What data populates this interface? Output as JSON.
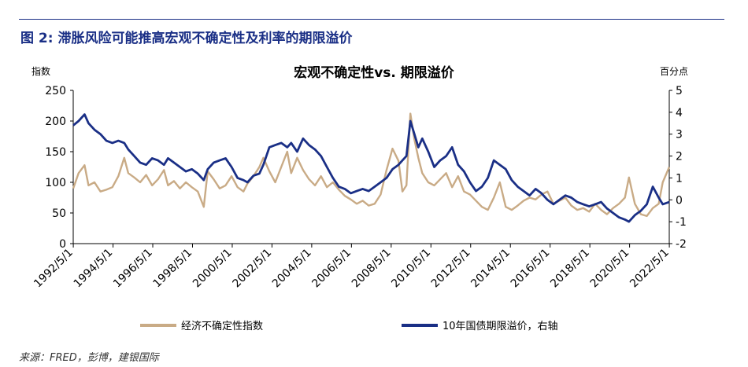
{
  "figure_title": "图 2: 滞胀风险可能推高宏观不确定性及利率的期限溢价",
  "source": "来源：FRED，彭博，建银国际",
  "chart_data": {
    "type": "line",
    "title": "宏观不确定性vs. 期限溢价",
    "ylabel_left": "指数",
    "ylabel_right": "百分点",
    "ylim_left": [
      0,
      250
    ],
    "ylim_right": [
      -2,
      5
    ],
    "yticks_left": [
      "0",
      "50",
      "100",
      "150",
      "200",
      "250"
    ],
    "yticks_right": [
      "-2",
      "-1",
      "0",
      "1",
      "2",
      "3",
      "4",
      "5"
    ],
    "xticks": [
      "1992/5/1",
      "1994/5/1",
      "1996/5/1",
      "1998/5/1",
      "2000/5/1",
      "2002/5/1",
      "2004/5/1",
      "2006/5/1",
      "2008/5/1",
      "2010/5/1",
      "2012/5/1",
      "2014/5/1",
      "2016/5/1",
      "2018/5/1",
      "2020/5/1",
      "2022/5/1"
    ],
    "xlim": [
      1992.33,
      2022.33
    ],
    "grid": false,
    "legend_position": "bottom",
    "series": [
      {
        "name": "经济不确定性指数",
        "axis": "left",
        "color": "#c9ab86",
        "x": [
          1992.33,
          1992.6,
          1992.9,
          1993.1,
          1993.4,
          1993.7,
          1994.0,
          1994.3,
          1994.6,
          1994.9,
          1995.1,
          1995.4,
          1995.7,
          1996.0,
          1996.3,
          1996.6,
          1996.9,
          1997.1,
          1997.4,
          1997.7,
          1998.0,
          1998.3,
          1998.6,
          1998.9,
          1999.1,
          1999.4,
          1999.7,
          2000.0,
          2000.3,
          2000.6,
          2000.9,
          2001.1,
          2001.4,
          2001.7,
          2001.9,
          2002.2,
          2002.5,
          2002.8,
          2003.1,
          2003.3,
          2003.6,
          2003.9,
          2004.2,
          2004.5,
          2004.8,
          2005.1,
          2005.4,
          2005.7,
          2006.0,
          2006.3,
          2006.6,
          2006.9,
          2007.2,
          2007.5,
          2007.8,
          2008.1,
          2008.4,
          2008.7,
          2008.9,
          2009.1,
          2009.3,
          2009.5,
          2009.7,
          2009.9,
          2010.2,
          2010.5,
          2010.8,
          2011.1,
          2011.4,
          2011.7,
          2012.0,
          2012.3,
          2012.6,
          2012.9,
          2013.2,
          2013.5,
          2013.8,
          2014.1,
          2014.4,
          2014.7,
          2015.0,
          2015.3,
          2015.6,
          2015.9,
          2016.2,
          2016.5,
          2016.8,
          2017.1,
          2017.4,
          2017.7,
          2018.0,
          2018.3,
          2018.6,
          2018.9,
          2019.2,
          2019.5,
          2019.8,
          2020.1,
          2020.3,
          2020.6,
          2020.9,
          2021.2,
          2021.5,
          2021.8,
          2022.0,
          2022.33
        ],
        "y": [
          90,
          115,
          128,
          95,
          100,
          85,
          88,
          92,
          110,
          140,
          115,
          108,
          100,
          112,
          95,
          105,
          120,
          95,
          102,
          90,
          100,
          92,
          85,
          60,
          118,
          105,
          90,
          95,
          110,
          92,
          85,
          98,
          110,
          125,
          140,
          118,
          100,
          125,
          150,
          115,
          140,
          120,
          105,
          95,
          110,
          92,
          100,
          88,
          78,
          72,
          65,
          70,
          62,
          65,
          80,
          120,
          155,
          135,
          85,
          95,
          212,
          170,
          140,
          115,
          100,
          95,
          105,
          115,
          92,
          110,
          85,
          80,
          70,
          60,
          55,
          75,
          100,
          60,
          55,
          62,
          70,
          75,
          72,
          80,
          85,
          65,
          70,
          75,
          62,
          55,
          58,
          52,
          65,
          55,
          48,
          58,
          65,
          75,
          108,
          65,
          48,
          45,
          58,
          65,
          100,
          125
        ]
      },
      {
        "name": "10年国债期限溢价，右轴",
        "axis": "right",
        "color": "#1a2f86",
        "x": [
          1992.33,
          1992.6,
          1992.9,
          1993.1,
          1993.4,
          1993.7,
          1994.0,
          1994.3,
          1994.6,
          1994.9,
          1995.1,
          1995.4,
          1995.7,
          1996.0,
          1996.3,
          1996.6,
          1996.9,
          1997.1,
          1997.4,
          1997.7,
          1998.0,
          1998.3,
          1998.6,
          1998.9,
          1999.1,
          1999.4,
          1999.7,
          2000.0,
          2000.3,
          2000.6,
          2000.9,
          2001.1,
          2001.4,
          2001.7,
          2001.9,
          2002.2,
          2002.5,
          2002.8,
          2003.1,
          2003.3,
          2003.6,
          2003.9,
          2004.2,
          2004.5,
          2004.8,
          2005.1,
          2005.4,
          2005.7,
          2006.0,
          2006.3,
          2006.6,
          2006.9,
          2007.2,
          2007.5,
          2007.8,
          2008.1,
          2008.4,
          2008.7,
          2008.9,
          2009.1,
          2009.3,
          2009.5,
          2009.7,
          2009.9,
          2010.2,
          2010.5,
          2010.8,
          2011.1,
          2011.4,
          2011.7,
          2012.0,
          2012.3,
          2012.6,
          2012.9,
          2013.2,
          2013.5,
          2013.8,
          2014.1,
          2014.4,
          2014.7,
          2015.0,
          2015.3,
          2015.6,
          2015.9,
          2016.2,
          2016.5,
          2016.8,
          2017.1,
          2017.4,
          2017.7,
          2018.0,
          2018.3,
          2018.6,
          2018.9,
          2019.2,
          2019.5,
          2019.8,
          2020.1,
          2020.3,
          2020.6,
          2020.9,
          2021.2,
          2021.5,
          2021.8,
          2022.0,
          2022.33
        ],
        "y": [
          3.4,
          3.6,
          3.9,
          3.5,
          3.2,
          3.0,
          2.7,
          2.6,
          2.7,
          2.6,
          2.3,
          2.0,
          1.7,
          1.6,
          1.9,
          1.8,
          1.6,
          1.9,
          1.7,
          1.5,
          1.3,
          1.4,
          1.2,
          0.9,
          1.4,
          1.7,
          1.8,
          1.9,
          1.5,
          1.0,
          0.9,
          0.8,
          1.1,
          1.2,
          1.6,
          2.4,
          2.5,
          2.6,
          2.4,
          2.6,
          2.2,
          2.8,
          2.5,
          2.3,
          2.0,
          1.5,
          1.0,
          0.6,
          0.5,
          0.3,
          0.4,
          0.5,
          0.4,
          0.6,
          0.8,
          1.0,
          1.4,
          1.6,
          1.8,
          2.0,
          3.6,
          3.0,
          2.4,
          2.8,
          2.2,
          1.5,
          1.8,
          2.0,
          2.4,
          1.6,
          1.3,
          0.8,
          0.4,
          0.6,
          1.0,
          1.8,
          1.6,
          1.4,
          0.9,
          0.6,
          0.4,
          0.2,
          0.5,
          0.3,
          0.0,
          -0.2,
          0.0,
          0.2,
          0.1,
          -0.1,
          -0.2,
          -0.3,
          -0.2,
          -0.1,
          -0.4,
          -0.6,
          -0.8,
          -0.9,
          -1.0,
          -0.7,
          -0.5,
          -0.2,
          0.6,
          0.1,
          -0.2,
          -0.1
        ]
      }
    ]
  }
}
